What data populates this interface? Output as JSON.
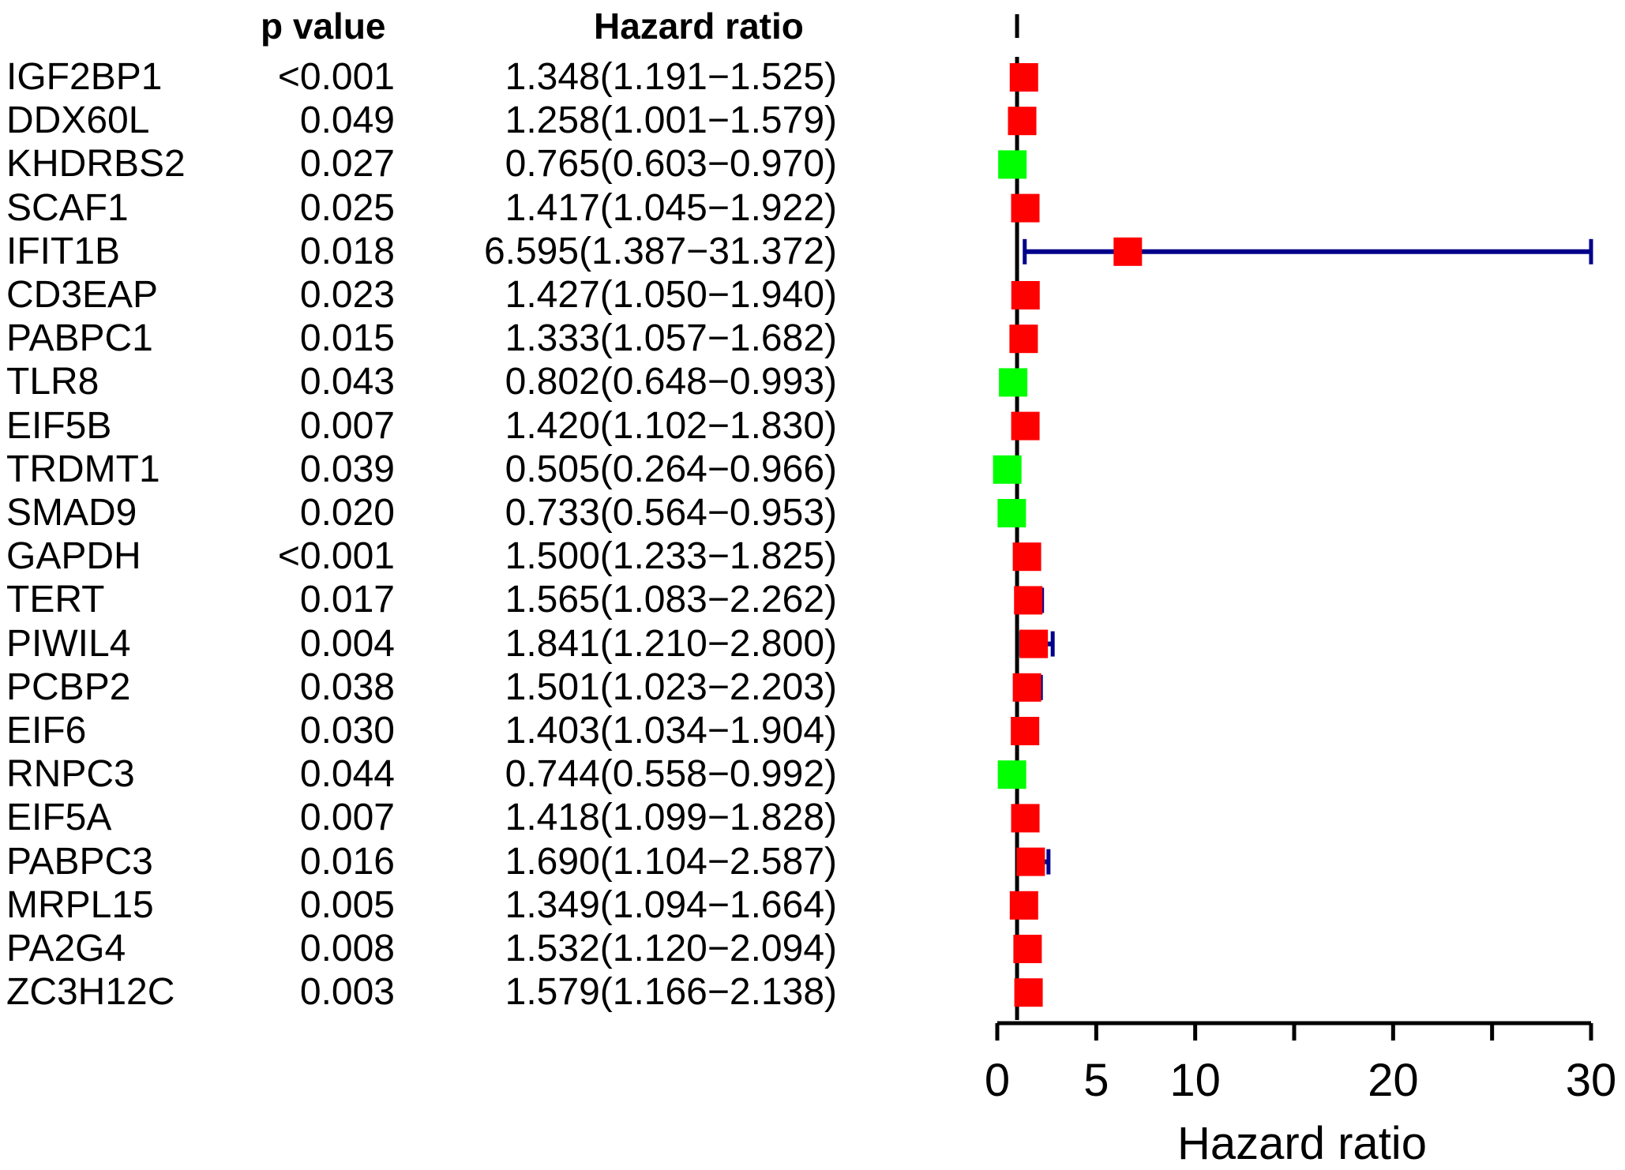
{
  "headers": {
    "p_value": "p value",
    "hazard_ratio": "Hazard ratio"
  },
  "chart_data": {
    "type": "forest",
    "xlabel": "Hazard ratio",
    "xlim": [
      0,
      30
    ],
    "xticks": [
      0,
      5,
      10,
      20,
      30
    ],
    "xtick_labels": [
      "0",
      "5",
      "10",
      "20",
      "30"
    ],
    "minor_ticks": [
      15,
      25
    ],
    "reference_line": 1,
    "colors": {
      "risk": "#ff0000",
      "protective": "#00ff00",
      "ci": "#00008b",
      "axis": "#000000"
    },
    "rows": [
      {
        "gene": "IGF2BP1",
        "p": "<0.001",
        "hr_text": "1.348(1.191−1.525)",
        "hr": 1.348,
        "lower": 1.191,
        "upper": 1.525
      },
      {
        "gene": "DDX60L",
        "p": "0.049",
        "hr_text": "1.258(1.001−1.579)",
        "hr": 1.258,
        "lower": 1.001,
        "upper": 1.579
      },
      {
        "gene": "KHDRBS2",
        "p": "0.027",
        "hr_text": "0.765(0.603−0.970)",
        "hr": 0.765,
        "lower": 0.603,
        "upper": 0.97
      },
      {
        "gene": "SCAF1",
        "p": "0.025",
        "hr_text": "1.417(1.045−1.922)",
        "hr": 1.417,
        "lower": 1.045,
        "upper": 1.922
      },
      {
        "gene": "IFIT1B",
        "p": "0.018",
        "hr_text": "6.595(1.387−31.372)",
        "hr": 6.595,
        "lower": 1.387,
        "upper": 31.372
      },
      {
        "gene": "CD3EAP",
        "p": "0.023",
        "hr_text": "1.427(1.050−1.940)",
        "hr": 1.427,
        "lower": 1.05,
        "upper": 1.94
      },
      {
        "gene": "PABPC1",
        "p": "0.015",
        "hr_text": "1.333(1.057−1.682)",
        "hr": 1.333,
        "lower": 1.057,
        "upper": 1.682
      },
      {
        "gene": "TLR8",
        "p": "0.043",
        "hr_text": "0.802(0.648−0.993)",
        "hr": 0.802,
        "lower": 0.648,
        "upper": 0.993
      },
      {
        "gene": "EIF5B",
        "p": "0.007",
        "hr_text": "1.420(1.102−1.830)",
        "hr": 1.42,
        "lower": 1.102,
        "upper": 1.83
      },
      {
        "gene": "TRDMT1",
        "p": "0.039",
        "hr_text": "0.505(0.264−0.966)",
        "hr": 0.505,
        "lower": 0.264,
        "upper": 0.966
      },
      {
        "gene": "SMAD9",
        "p": "0.020",
        "hr_text": "0.733(0.564−0.953)",
        "hr": 0.733,
        "lower": 0.564,
        "upper": 0.953
      },
      {
        "gene": "GAPDH",
        "p": "<0.001",
        "hr_text": "1.500(1.233−1.825)",
        "hr": 1.5,
        "lower": 1.233,
        "upper": 1.825
      },
      {
        "gene": "TERT",
        "p": "0.017",
        "hr_text": "1.565(1.083−2.262)",
        "hr": 1.565,
        "lower": 1.083,
        "upper": 2.262
      },
      {
        "gene": "PIWIL4",
        "p": "0.004",
        "hr_text": "1.841(1.210−2.800)",
        "hr": 1.841,
        "lower": 1.21,
        "upper": 2.8
      },
      {
        "gene": "PCBP2",
        "p": "0.038",
        "hr_text": "1.501(1.023−2.203)",
        "hr": 1.501,
        "lower": 1.023,
        "upper": 2.203
      },
      {
        "gene": "EIF6",
        "p": "0.030",
        "hr_text": "1.403(1.034−1.904)",
        "hr": 1.403,
        "lower": 1.034,
        "upper": 1.904
      },
      {
        "gene": "RNPC3",
        "p": "0.044",
        "hr_text": "0.744(0.558−0.992)",
        "hr": 0.744,
        "lower": 0.558,
        "upper": 0.992
      },
      {
        "gene": "EIF5A",
        "p": "0.007",
        "hr_text": "1.418(1.099−1.828)",
        "hr": 1.418,
        "lower": 1.099,
        "upper": 1.828
      },
      {
        "gene": "PABPC3",
        "p": "0.016",
        "hr_text": "1.690(1.104−2.587)",
        "hr": 1.69,
        "lower": 1.104,
        "upper": 2.587
      },
      {
        "gene": "MRPL15",
        "p": "0.005",
        "hr_text": "1.349(1.094−1.664)",
        "hr": 1.349,
        "lower": 1.094,
        "upper": 1.664
      },
      {
        "gene": "PA2G4",
        "p": "0.008",
        "hr_text": "1.532(1.120−2.094)",
        "hr": 1.532,
        "lower": 1.12,
        "upper": 2.094
      },
      {
        "gene": "ZC3H12C",
        "p": "0.003",
        "hr_text": "1.579(1.166−2.138)",
        "hr": 1.579,
        "lower": 1.166,
        "upper": 2.138
      }
    ]
  }
}
